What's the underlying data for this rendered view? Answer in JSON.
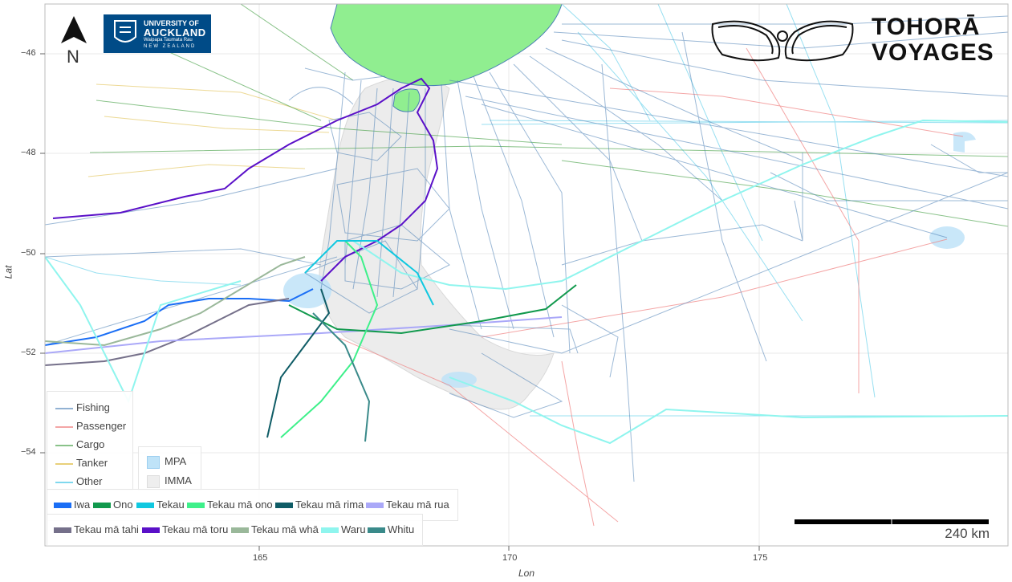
{
  "axes": {
    "x_label": "Lon",
    "y_label": "Lat",
    "x_ticks": [
      "165",
      "170",
      "175"
    ],
    "y_ticks": [
      "−46",
      "−48",
      "−50",
      "−52",
      "−54"
    ]
  },
  "north_arrow": {
    "letter": "N"
  },
  "logos": {
    "university_line1": "UNIVERSITY OF",
    "university_line2": "AUCKLAND",
    "university_line3": "Waipapa Taumata Rau",
    "university_line4": "NEW ZEALAND",
    "project_line1": "TOHORĀ",
    "project_line2": "VOYAGES"
  },
  "scale_bar": {
    "label": "240 km"
  },
  "legend_vessels": [
    {
      "label": "Fishing",
      "color": "#4a7fb5"
    },
    {
      "label": "Passenger",
      "color": "#f08080"
    },
    {
      "label": "Cargo",
      "color": "#3a9a3a"
    },
    {
      "label": "Tanker",
      "color": "#e8d07a"
    },
    {
      "label": "Other",
      "color": "#7fd8ee"
    }
  ],
  "legend_areas": [
    {
      "label": "MPA",
      "color": "#bfe3f8"
    },
    {
      "label": "IMMA",
      "color": "#eeeeee"
    }
  ],
  "legend_whales_row1": [
    {
      "label": "Iwa",
      "color": "#1a6ef5"
    },
    {
      "label": "Ono",
      "color": "#11994d"
    },
    {
      "label": "Tekau",
      "color": "#10c8e0"
    },
    {
      "label": "Tekau mā ono",
      "color": "#3ef08a"
    },
    {
      "label": "Tekau mā rima",
      "color": "#0f5c66"
    },
    {
      "label": "Tekau mā rua",
      "color": "#aaa8f8"
    }
  ],
  "legend_whales_row2": [
    {
      "label": "Tekau mā tahi",
      "color": "#75708a"
    },
    {
      "label": "Tekau mā toru",
      "color": "#5a10c8"
    },
    {
      "label": "Tekau mā whā",
      "color": "#9ab89a"
    },
    {
      "label": "Waru",
      "color": "#8ff5ee"
    },
    {
      "label": "Whitu",
      "color": "#3a8a8a"
    }
  ]
}
